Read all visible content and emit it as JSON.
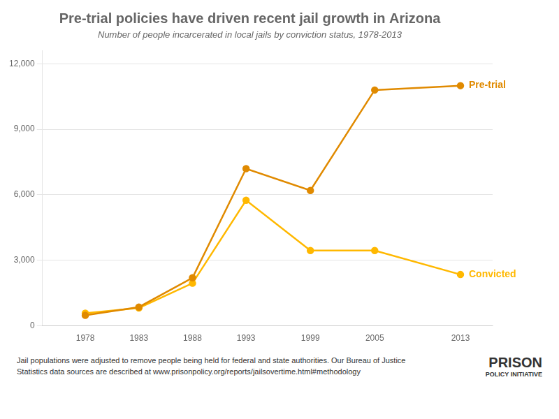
{
  "chart_data": {
    "type": "line",
    "title": "Pre-trial policies have driven recent jail growth in Arizona",
    "subtitle": "Number of people incarcerated in local jails by conviction status, 1978-2013",
    "footnote": [
      "Jail populations were adjusted to remove people being held for federal and state authorities. Our Bureau of Justice",
      "Statistics data sources are described at www.prisonpolicy.org/reports/jailsovertime.html#methodology"
    ],
    "annotations": [
      "PRISON",
      "POLICY INITIATIVE"
    ],
    "x": [
      1978,
      1983,
      1988,
      1993,
      1999,
      2005,
      2013
    ],
    "series": [
      {
        "name": "Pre-trial",
        "color": "#E08A00",
        "marker": "circle",
        "values": [
          480,
          860,
          2200,
          7200,
          6200,
          10800,
          11000
        ]
      },
      {
        "name": "Convicted",
        "color": "#FFB800",
        "marker": "circle",
        "values": [
          580,
          820,
          1950,
          5750,
          3450,
          3450,
          2350
        ]
      }
    ],
    "xlim": [
      1974,
      2016
    ],
    "xticks": [
      1978,
      1983,
      1988,
      1993,
      1999,
      2005,
      2013
    ],
    "ylim": [
      0,
      12600
    ],
    "yticks": [
      0,
      {
        "value": 3000,
        "label": "3,000"
      },
      {
        "value": 6000,
        "label": "6,000"
      },
      {
        "value": 9000,
        "label": "9,000"
      },
      {
        "value": 12000,
        "label": "12,000"
      }
    ],
    "grid": "y"
  }
}
